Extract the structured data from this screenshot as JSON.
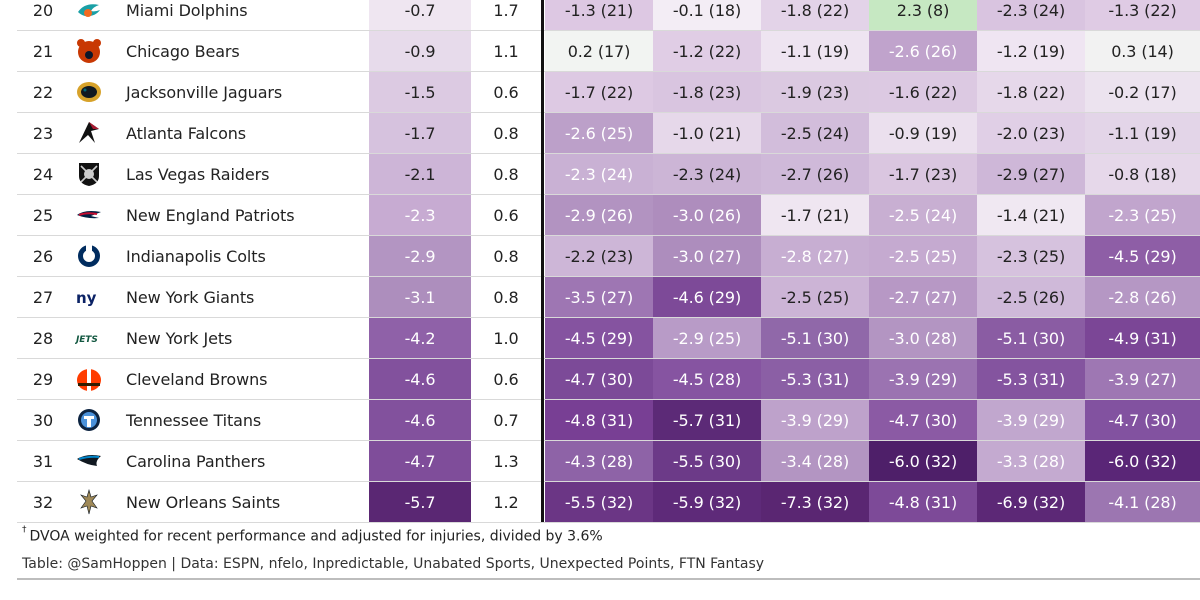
{
  "rows": [
    {
      "rank": "20",
      "logo": "dolphins-logo",
      "team": "Miami Dolphins",
      "v1": "-0.7",
      "v2": "1.7",
      "m": [
        "-1.3 (21)",
        "-0.1 (18)",
        "-1.8 (22)",
        "2.3 (8)",
        "-2.3 (24)",
        "-1.3 (22)"
      ],
      "c1": "#efe6f1",
      "mc": [
        "#ddc8e3",
        "#f3edf5",
        "#e3d3e8",
        "#c6e8c2",
        "#d9c4e0",
        "#dfcbe4"
      ]
    },
    {
      "rank": "21",
      "logo": "bears-logo",
      "team": "Chicago Bears",
      "v1": "-0.9",
      "v2": "1.1",
      "m": [
        "0.2 (17)",
        "-1.2 (22)",
        "-1.1 (19)",
        "-2.6 (26)",
        "-1.2 (19)",
        "0.3 (14)"
      ],
      "c1": "#e7dbeb",
      "mc": [
        "#f2f4f2",
        "#e0cde5",
        "#eee4f1",
        "#c0a3cc",
        "#efe5f2",
        "#f2f2f2"
      ]
    },
    {
      "rank": "22",
      "logo": "jaguars-logo",
      "team": "Jacksonville Jaguars",
      "v1": "-1.5",
      "v2": "0.6",
      "m": [
        "-1.7 (22)",
        "-1.8 (23)",
        "-1.9 (23)",
        "-1.6 (22)",
        "-1.8 (22)",
        "-0.2 (17)"
      ],
      "c1": "#dccae2",
      "mc": [
        "#ddc9e3",
        "#d9c5e0",
        "#dbc9e1",
        "#dcc9e2",
        "#e6d8ea",
        "#ece3ef"
      ]
    },
    {
      "rank": "23",
      "logo": "falcons-logo",
      "team": "Atlanta Falcons",
      "v1": "-1.7",
      "v2": "0.8",
      "m": [
        "-2.6 (25)",
        "-1.0 (21)",
        "-2.5 (24)",
        "-0.9 (19)",
        "-2.0 (23)",
        "-1.1 (19)"
      ],
      "c1": "#d6c2de",
      "mc": [
        "#bca0c9",
        "#e6d8ea",
        "#d2bddb",
        "#ebe0ee",
        "#e0cfe6",
        "#e3d5e8"
      ]
    },
    {
      "rank": "24",
      "logo": "raiders-logo",
      "team": "Las Vegas Raiders",
      "v1": "-2.1",
      "v2": "0.8",
      "m": [
        "-2.3 (24)",
        "-2.3 (24)",
        "-2.7 (26)",
        "-1.7 (23)",
        "-2.9 (27)",
        "-0.8 (18)"
      ],
      "c1": "#cdb5d7",
      "mc": [
        "#c9b1d4",
        "#ccb5d6",
        "#cfb9d9",
        "#dac6e0",
        "#ceb7d8",
        "#e6d8ea"
      ]
    },
    {
      "rank": "25",
      "logo": "patriots-logo",
      "team": "New England Patriots",
      "v1": "-2.3",
      "v2": "0.6",
      "m": [
        "-2.9 (26)",
        "-3.0 (26)",
        "-1.7 (21)",
        "-2.5 (24)",
        "-1.4 (21)",
        "-2.3 (25)"
      ],
      "c1": "#c7abd2",
      "mc": [
        "#b293c1",
        "#ae8dbd",
        "#efe6f1",
        "#c8afd2",
        "#f0e8f2",
        "#c1a5cd"
      ]
    },
    {
      "rank": "26",
      "logo": "colts-logo",
      "team": "Indianapolis Colts",
      "v1": "-2.9",
      "v2": "0.8",
      "m": [
        "-2.2 (23)",
        "-3.0 (27)",
        "-2.8 (27)",
        "-2.5 (25)",
        "-2.3 (25)",
        "-4.5 (29)"
      ],
      "c1": "#b395c2",
      "mc": [
        "#cdb6d7",
        "#ad8dbd",
        "#c7aed2",
        "#c5aad0",
        "#d6c2de",
        "#8e5ea6"
      ]
    },
    {
      "rank": "27",
      "logo": "giants-logo",
      "team": "New York Giants",
      "v1": "-3.1",
      "v2": "0.8",
      "m": [
        "-3.5 (27)",
        "-4.6 (29)",
        "-2.5 (25)",
        "-2.7 (27)",
        "-2.5 (26)",
        "-2.8 (26)"
      ],
      "c1": "#ad8ebd",
      "mc": [
        "#9e76b3",
        "#7d4a98",
        "#ccb4d6",
        "#b798c5",
        "#cfb9d9",
        "#b597c4"
      ]
    },
    {
      "rank": "28",
      "logo": "jets-logo",
      "team": "New York Jets",
      "v1": "-4.2",
      "v2": "1.0",
      "m": [
        "-4.5 (29)",
        "-2.9 (25)",
        "-5.1 (30)",
        "-3.0 (28)",
        "-5.1 (30)",
        "-4.9 (31)"
      ],
      "c1": "#8f61a8",
      "mc": [
        "#8553a0",
        "#b89bc7",
        "#9068a9",
        "#b395c2",
        "#8a5ca3",
        "#7b4696"
      ]
    },
    {
      "rank": "29",
      "logo": "browns-logo",
      "team": "Cleveland Browns",
      "v1": "-4.6",
      "v2": "0.6",
      "m": [
        "-4.7 (30)",
        "-4.5 (28)",
        "-5.3 (31)",
        "-3.9 (29)",
        "-5.3 (31)",
        "-3.9 (27)"
      ],
      "c1": "#82519d",
      "mc": [
        "#7c4a98",
        "#8654a1",
        "#8b5fa5",
        "#9b73b1",
        "#84549f",
        "#9e77b3"
      ]
    },
    {
      "rank": "30",
      "logo": "titans-logo",
      "team": "Tennessee Titans",
      "v1": "-4.6",
      "v2": "0.7",
      "m": [
        "-4.8 (31)",
        "-5.7 (31)",
        "-3.9 (29)",
        "-4.7 (30)",
        "-3.9 (29)",
        "-4.7 (30)"
      ],
      "c1": "#82519d",
      "mc": [
        "#783f94",
        "#5c2a77",
        "#bea2cb",
        "#8b5aa4",
        "#c1a7ce",
        "#8252a0"
      ]
    },
    {
      "rank": "31",
      "logo": "panthers-logo",
      "team": "Carolina Panthers",
      "v1": "-4.7",
      "v2": "1.3",
      "m": [
        "-4.3 (28)",
        "-5.5 (30)",
        "-3.4 (28)",
        "-6.0 (32)",
        "-3.3 (28)",
        "-6.0 (32)"
      ],
      "c1": "#7f4d9a",
      "mc": [
        "#8e63a7",
        "#6c3a88",
        "#b395c2",
        "#4e1f69",
        "#c4aad0",
        "#5a2677"
      ]
    },
    {
      "rank": "32",
      "logo": "saints-logo",
      "team": "New Orleans Saints",
      "v1": "-5.7",
      "v2": "1.2",
      "m": [
        "-5.5 (32)",
        "-5.9 (32)",
        "-7.3 (32)",
        "-4.8 (31)",
        "-6.9 (32)",
        "-4.1 (28)"
      ],
      "c1": "#5a2773",
      "mc": [
        "#6b3685",
        "#5e2a79",
        "#5a2672",
        "#7d4a98",
        "#5c2876",
        "#9c76b1"
      ]
    }
  ],
  "footnote": {
    "marker": "†",
    "text": "DVOA weighted for recent performance and adjusted for injuries, divided by 3.6%"
  },
  "credit": "Table: @SamHoppen | Data: ESPN, nfelo, Inpredictable, Unabated Sports, Unexpected Points, FTN Fantasy"
}
